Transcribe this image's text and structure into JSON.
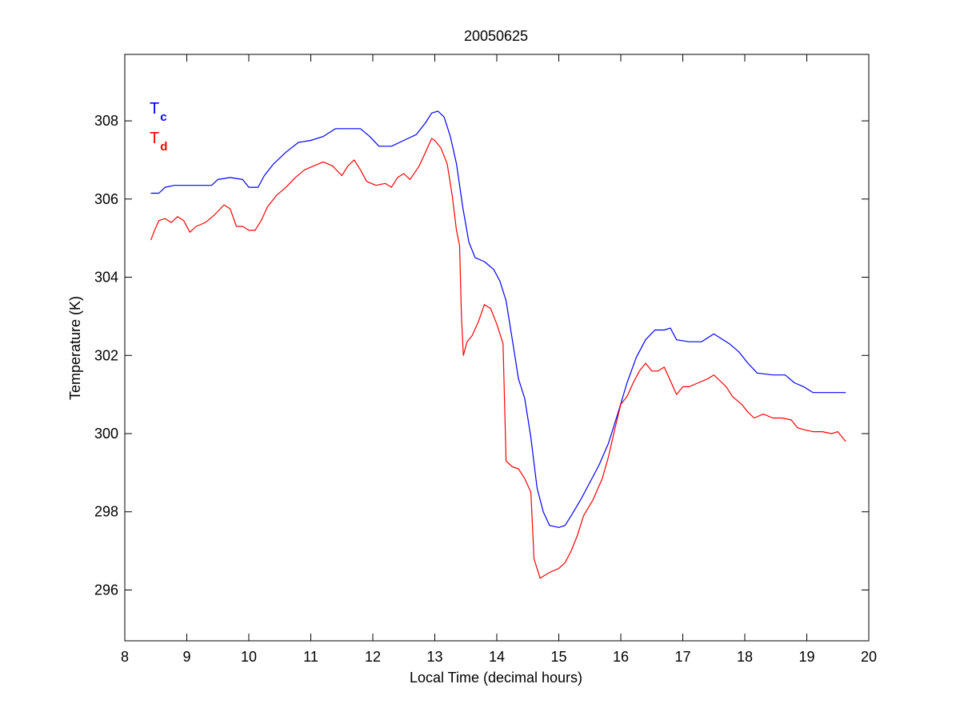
{
  "chart_data": {
    "type": "line",
    "title": "20050625",
    "xlabel": "Local Time (decimal hours)",
    "ylabel": "Temperature (K)",
    "xlim": [
      8,
      20
    ],
    "ylim": [
      294.7,
      309.7
    ],
    "xticks": [
      8,
      9,
      10,
      11,
      12,
      13,
      14,
      15,
      16,
      17,
      18,
      19,
      20
    ],
    "yticks": [
      296,
      298,
      300,
      302,
      304,
      306,
      308
    ],
    "grid": false,
    "legend_position": "top-left",
    "series": [
      {
        "name": "T",
        "subscript": "c",
        "color": "#0000ff",
        "points": [
          [
            8.42,
            306.15
          ],
          [
            8.55,
            306.15
          ],
          [
            8.65,
            306.3
          ],
          [
            8.8,
            306.35
          ],
          [
            9.0,
            306.35
          ],
          [
            9.2,
            306.35
          ],
          [
            9.4,
            306.35
          ],
          [
            9.5,
            306.5
          ],
          [
            9.7,
            306.55
          ],
          [
            9.9,
            306.5
          ],
          [
            10.0,
            306.3
          ],
          [
            10.15,
            306.3
          ],
          [
            10.25,
            306.6
          ],
          [
            10.4,
            306.9
          ],
          [
            10.6,
            307.2
          ],
          [
            10.8,
            307.45
          ],
          [
            11.0,
            307.5
          ],
          [
            11.2,
            307.6
          ],
          [
            11.4,
            307.8
          ],
          [
            11.6,
            307.8
          ],
          [
            11.8,
            307.8
          ],
          [
            11.95,
            307.6
          ],
          [
            12.1,
            307.35
          ],
          [
            12.3,
            307.35
          ],
          [
            12.5,
            307.5
          ],
          [
            12.7,
            307.65
          ],
          [
            12.85,
            307.95
          ],
          [
            12.95,
            308.2
          ],
          [
            13.05,
            308.25
          ],
          [
            13.15,
            308.1
          ],
          [
            13.25,
            307.6
          ],
          [
            13.35,
            306.9
          ],
          [
            13.45,
            305.8
          ],
          [
            13.55,
            304.9
          ],
          [
            13.65,
            304.5
          ],
          [
            13.8,
            304.4
          ],
          [
            13.95,
            304.2
          ],
          [
            14.05,
            303.9
          ],
          [
            14.15,
            303.4
          ],
          [
            14.25,
            302.4
          ],
          [
            14.35,
            301.4
          ],
          [
            14.45,
            300.9
          ],
          [
            14.55,
            299.9
          ],
          [
            14.65,
            298.6
          ],
          [
            14.75,
            298.0
          ],
          [
            14.85,
            297.65
          ],
          [
            15.0,
            297.6
          ],
          [
            15.1,
            297.65
          ],
          [
            15.2,
            297.9
          ],
          [
            15.35,
            298.3
          ],
          [
            15.5,
            298.75
          ],
          [
            15.65,
            299.2
          ],
          [
            15.8,
            299.75
          ],
          [
            15.95,
            300.5
          ],
          [
            16.1,
            301.3
          ],
          [
            16.25,
            301.95
          ],
          [
            16.4,
            302.4
          ],
          [
            16.55,
            302.65
          ],
          [
            16.7,
            302.65
          ],
          [
            16.8,
            302.7
          ],
          [
            16.9,
            302.4
          ],
          [
            17.1,
            302.35
          ],
          [
            17.3,
            302.35
          ],
          [
            17.5,
            302.55
          ],
          [
            17.6,
            302.45
          ],
          [
            17.75,
            302.3
          ],
          [
            17.9,
            302.1
          ],
          [
            18.05,
            301.8
          ],
          [
            18.2,
            301.55
          ],
          [
            18.45,
            301.5
          ],
          [
            18.65,
            301.5
          ],
          [
            18.8,
            301.3
          ],
          [
            18.95,
            301.2
          ],
          [
            19.1,
            301.05
          ],
          [
            19.3,
            301.05
          ],
          [
            19.63,
            301.05
          ]
        ]
      },
      {
        "name": "T",
        "subscript": "d",
        "color": "#ff0000",
        "points": [
          [
            8.42,
            304.95
          ],
          [
            8.48,
            305.2
          ],
          [
            8.55,
            305.45
          ],
          [
            8.65,
            305.5
          ],
          [
            8.75,
            305.4
          ],
          [
            8.85,
            305.55
          ],
          [
            8.95,
            305.45
          ],
          [
            9.05,
            305.15
          ],
          [
            9.15,
            305.3
          ],
          [
            9.3,
            305.4
          ],
          [
            9.45,
            305.6
          ],
          [
            9.6,
            305.85
          ],
          [
            9.7,
            305.75
          ],
          [
            9.8,
            305.3
          ],
          [
            9.9,
            305.3
          ],
          [
            10.0,
            305.2
          ],
          [
            10.1,
            305.2
          ],
          [
            10.2,
            305.45
          ],
          [
            10.3,
            305.8
          ],
          [
            10.45,
            306.1
          ],
          [
            10.6,
            306.3
          ],
          [
            10.75,
            306.55
          ],
          [
            10.9,
            306.75
          ],
          [
            11.05,
            306.85
          ],
          [
            11.2,
            306.95
          ],
          [
            11.35,
            306.85
          ],
          [
            11.5,
            306.6
          ],
          [
            11.6,
            306.85
          ],
          [
            11.7,
            307.0
          ],
          [
            11.8,
            306.75
          ],
          [
            11.9,
            306.45
          ],
          [
            12.05,
            306.35
          ],
          [
            12.2,
            306.4
          ],
          [
            12.3,
            306.3
          ],
          [
            12.4,
            306.55
          ],
          [
            12.5,
            306.65
          ],
          [
            12.6,
            306.5
          ],
          [
            12.75,
            306.85
          ],
          [
            12.85,
            307.2
          ],
          [
            12.95,
            307.55
          ],
          [
            13.0,
            307.5
          ],
          [
            13.1,
            307.3
          ],
          [
            13.2,
            306.9
          ],
          [
            13.28,
            306.1
          ],
          [
            13.35,
            305.2
          ],
          [
            13.4,
            304.8
          ],
          [
            13.43,
            303.0
          ],
          [
            13.46,
            302.0
          ],
          [
            13.52,
            302.35
          ],
          [
            13.6,
            302.5
          ],
          [
            13.7,
            302.85
          ],
          [
            13.8,
            303.3
          ],
          [
            13.9,
            303.2
          ],
          [
            14.0,
            302.8
          ],
          [
            14.1,
            302.3
          ],
          [
            14.15,
            299.3
          ],
          [
            14.25,
            299.15
          ],
          [
            14.35,
            299.1
          ],
          [
            14.45,
            298.85
          ],
          [
            14.55,
            298.5
          ],
          [
            14.6,
            296.8
          ],
          [
            14.7,
            296.3
          ],
          [
            14.85,
            296.45
          ],
          [
            15.0,
            296.55
          ],
          [
            15.1,
            296.7
          ],
          [
            15.2,
            297.0
          ],
          [
            15.3,
            297.4
          ],
          [
            15.4,
            297.9
          ],
          [
            15.55,
            298.3
          ],
          [
            15.7,
            298.85
          ],
          [
            15.8,
            299.4
          ],
          [
            15.9,
            300.1
          ],
          [
            16.0,
            300.75
          ],
          [
            16.1,
            300.95
          ],
          [
            16.2,
            301.3
          ],
          [
            16.3,
            301.6
          ],
          [
            16.4,
            301.8
          ],
          [
            16.5,
            301.6
          ],
          [
            16.6,
            301.6
          ],
          [
            16.7,
            301.7
          ],
          [
            16.8,
            301.35
          ],
          [
            16.9,
            301.0
          ],
          [
            17.0,
            301.2
          ],
          [
            17.1,
            301.2
          ],
          [
            17.25,
            301.3
          ],
          [
            17.4,
            301.4
          ],
          [
            17.5,
            301.5
          ],
          [
            17.6,
            301.35
          ],
          [
            17.7,
            301.2
          ],
          [
            17.8,
            300.95
          ],
          [
            17.95,
            300.75
          ],
          [
            18.05,
            300.55
          ],
          [
            18.15,
            300.4
          ],
          [
            18.3,
            300.5
          ],
          [
            18.45,
            300.4
          ],
          [
            18.6,
            300.4
          ],
          [
            18.75,
            300.35
          ],
          [
            18.85,
            300.15
          ],
          [
            18.95,
            300.1
          ],
          [
            19.1,
            300.05
          ],
          [
            19.25,
            300.05
          ],
          [
            19.4,
            300.0
          ],
          [
            19.5,
            300.05
          ],
          [
            19.55,
            299.95
          ],
          [
            19.6,
            299.85
          ],
          [
            19.63,
            299.8
          ]
        ]
      }
    ]
  }
}
